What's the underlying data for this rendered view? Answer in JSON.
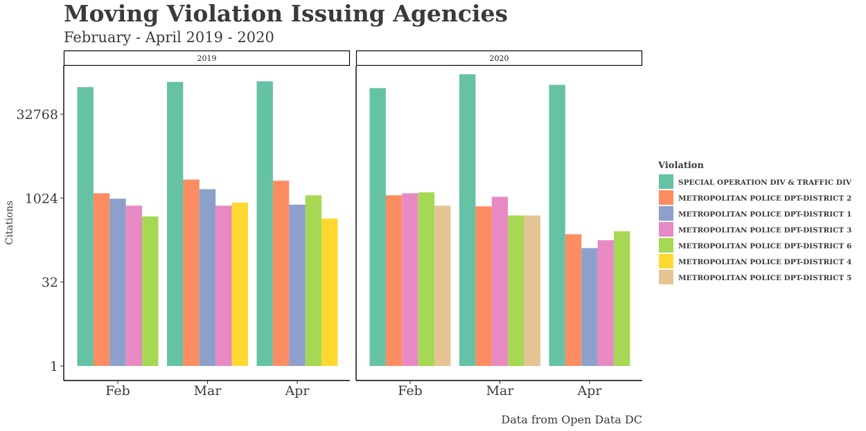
{
  "chart_data": {
    "type": "bar",
    "title": "Moving Violation Issuing Agencies",
    "subtitle": "February - April 2019 - 2020",
    "ylabel": "Citations",
    "xlabel": "",
    "caption": "Data from Open Data DC",
    "y_scale": "log2",
    "ylim": [
      1,
      250000
    ],
    "y_ticks": [
      1,
      32,
      1024,
      32768
    ],
    "y_tick_labels": [
      "1",
      "32",
      "1024",
      "32768"
    ],
    "categories": [
      "Feb",
      "Mar",
      "Apr"
    ],
    "legend": {
      "title": "Violation",
      "placement": "right",
      "entries": [
        {
          "name": "SPECIAL OPERATION DIV & TRAFFIC DIV",
          "color": "#66c2a5"
        },
        {
          "name": "METROPOLITAN POLICE DPT-DISTRICT 2",
          "color": "#fc8d62"
        },
        {
          "name": "METROPOLITAN POLICE DPT-DISTRICT 1",
          "color": "#8da0cb"
        },
        {
          "name": "METROPOLITAN POLICE DPT-DISTRICT 3",
          "color": "#e78ac3"
        },
        {
          "name": "METROPOLITAN POLICE DPT-DISTRICT 6",
          "color": "#a6d854"
        },
        {
          "name": "METROPOLITAN POLICE DPT-DISTRICT 4",
          "color": "#ffd92f"
        },
        {
          "name": "METROPOLITAN POLICE DPT-DISTRICT 5",
          "color": "#e5c494"
        }
      ]
    },
    "panels": [
      {
        "label": "2019",
        "groups": [
          {
            "category": "Feb",
            "bars": [
              {
                "series": "SPECIAL OPERATION DIV & TRAFFIC DIV",
                "value": 100000
              },
              {
                "series": "METROPOLITAN POLICE DPT-DISTRICT 2",
                "value": 1250
              },
              {
                "series": "METROPOLITAN POLICE DPT-DISTRICT 1",
                "value": 1000
              },
              {
                "series": "METROPOLITAN POLICE DPT-DISTRICT 3",
                "value": 750
              },
              {
                "series": "METROPOLITAN POLICE DPT-DISTRICT 6",
                "value": 480
              }
            ]
          },
          {
            "category": "Mar",
            "bars": [
              {
                "series": "SPECIAL OPERATION DIV & TRAFFIC DIV",
                "value": 124000
              },
              {
                "series": "METROPOLITAN POLICE DPT-DISTRICT 2",
                "value": 2200
              },
              {
                "series": "METROPOLITAN POLICE DPT-DISTRICT 1",
                "value": 1480
              },
              {
                "series": "METROPOLITAN POLICE DPT-DISTRICT 3",
                "value": 750
              },
              {
                "series": "METROPOLITAN POLICE DPT-DISTRICT 4",
                "value": 850
              }
            ]
          },
          {
            "category": "Apr",
            "bars": [
              {
                "series": "SPECIAL OPERATION DIV & TRAFFIC DIV",
                "value": 127000
              },
              {
                "series": "METROPOLITAN POLICE DPT-DISTRICT 2",
                "value": 2100
              },
              {
                "series": "METROPOLITAN POLICE DPT-DISTRICT 1",
                "value": 780
              },
              {
                "series": "METROPOLITAN POLICE DPT-DISTRICT 6",
                "value": 1150
              },
              {
                "series": "METROPOLITAN POLICE DPT-DISTRICT 4",
                "value": 440
              }
            ]
          }
        ]
      },
      {
        "label": "2020",
        "groups": [
          {
            "category": "Feb",
            "bars": [
              {
                "series": "SPECIAL OPERATION DIV & TRAFFIC DIV",
                "value": 96000
              },
              {
                "series": "METROPOLITAN POLICE DPT-DISTRICT 2",
                "value": 1150
              },
              {
                "series": "METROPOLITAN POLICE DPT-DISTRICT 3",
                "value": 1250
              },
              {
                "series": "METROPOLITAN POLICE DPT-DISTRICT 6",
                "value": 1300
              },
              {
                "series": "METROPOLITAN POLICE DPT-DISTRICT 5",
                "value": 750
              }
            ]
          },
          {
            "category": "Mar",
            "bars": [
              {
                "series": "SPECIAL OPERATION DIV & TRAFFIC DIV",
                "value": 170000
              },
              {
                "series": "METROPOLITAN POLICE DPT-DISTRICT 2",
                "value": 730
              },
              {
                "series": "METROPOLITAN POLICE DPT-DISTRICT 3",
                "value": 1080
              },
              {
                "series": "METROPOLITAN POLICE DPT-DISTRICT 6",
                "value": 500
              },
              {
                "series": "METROPOLITAN POLICE DPT-DISTRICT 5",
                "value": 500
              }
            ]
          },
          {
            "category": "Apr",
            "bars": [
              {
                "series": "SPECIAL OPERATION DIV & TRAFFIC DIV",
                "value": 110000
              },
              {
                "series": "METROPOLITAN POLICE DPT-DISTRICT 2",
                "value": 230
              },
              {
                "series": "METROPOLITAN POLICE DPT-DISTRICT 1",
                "value": 130
              },
              {
                "series": "METROPOLITAN POLICE DPT-DISTRICT 3",
                "value": 180
              },
              {
                "series": "METROPOLITAN POLICE DPT-DISTRICT 6",
                "value": 260
              }
            ]
          }
        ]
      }
    ]
  }
}
